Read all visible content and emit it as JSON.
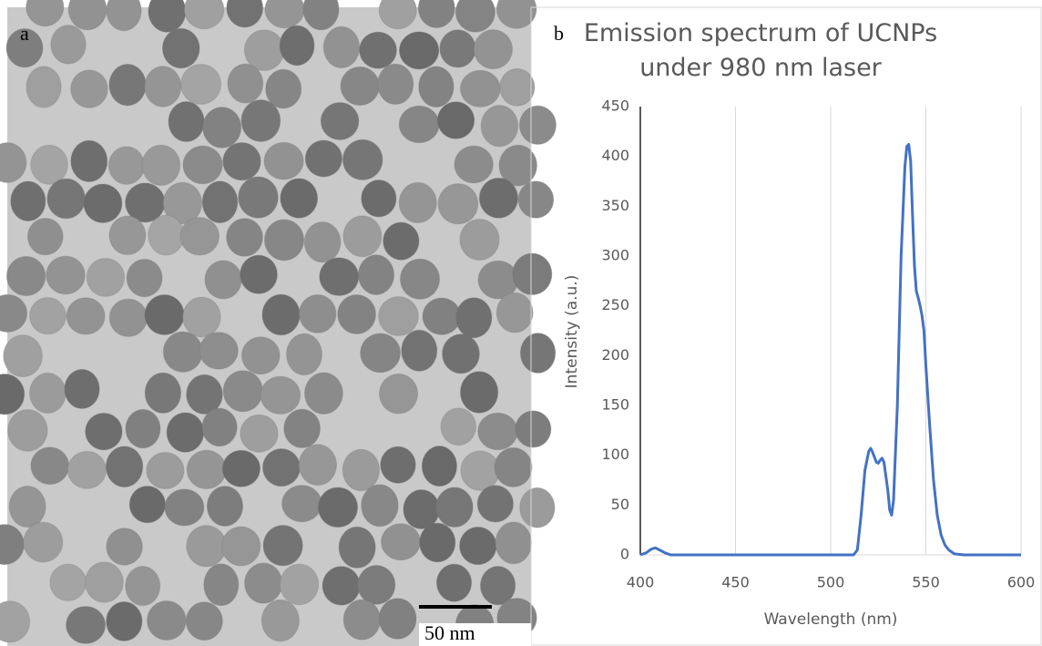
{
  "panel_a": {
    "label": "a",
    "scale_bar_label": "50 nm"
  },
  "panel_b_label": "b",
  "chart_data": {
    "type": "line",
    "title": "Emission spectrum of UCNPs under 980 nm laser",
    "x_label": "Wavelength (nm)",
    "y_label": "Intensity (a.u.)",
    "x": [
      400,
      403,
      406,
      408,
      410,
      413,
      416,
      420,
      450,
      500,
      510,
      512,
      514,
      516,
      518,
      520,
      521,
      522,
      524,
      525,
      526,
      527,
      528,
      530,
      531,
      532,
      533,
      535,
      537,
      539,
      540,
      541,
      542,
      543,
      544,
      545,
      546,
      547,
      548,
      549,
      550,
      552,
      554,
      556,
      558,
      560,
      562,
      565,
      570,
      580,
      590,
      600
    ],
    "values": [
      0,
      2,
      6,
      7,
      5,
      2,
      0,
      0,
      0,
      0,
      0,
      0,
      5,
      40,
      85,
      104,
      107,
      103,
      93,
      92,
      95,
      97,
      93,
      65,
      45,
      40,
      55,
      150,
      300,
      390,
      410,
      412,
      395,
      340,
      290,
      265,
      258,
      250,
      240,
      225,
      190,
      130,
      75,
      40,
      20,
      10,
      5,
      1,
      0,
      0,
      0,
      0
    ],
    "color": "#4472c4",
    "xlim": [
      400,
      600
    ],
    "xticks": [
      400,
      450,
      500,
      550,
      600
    ],
    "ylim": [
      0,
      450
    ],
    "yticks": [
      0,
      50,
      100,
      150,
      200,
      250,
      300,
      350,
      400,
      450
    ],
    "grid": "x"
  }
}
